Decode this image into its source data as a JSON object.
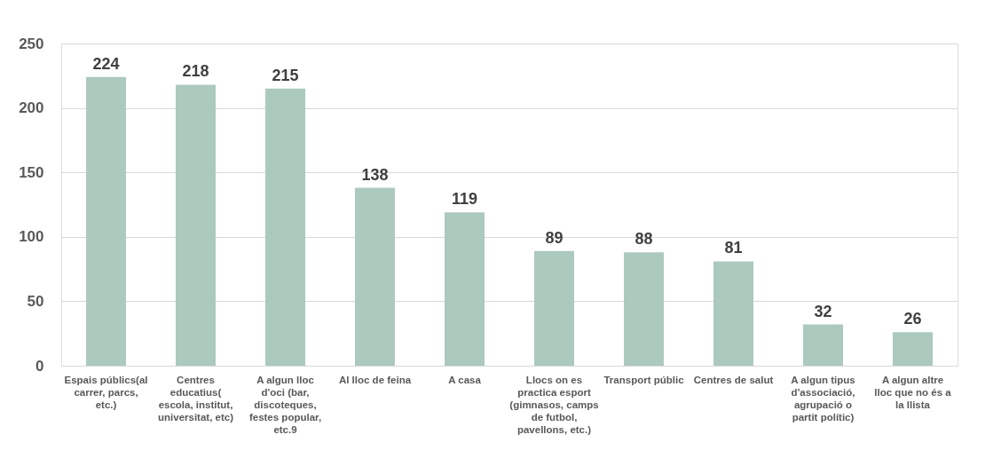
{
  "chart_data": {
    "type": "bar",
    "categories": [
      "Espais públics(al carrer, parcs, etc.)",
      "Centres educatius( escola, institut, universitat, etc)",
      "A algun lloc d'oci (bar, discoteques, festes popular, etc.9",
      "Al lloc de feina",
      "A casa",
      "Llocs on es practica esport (gimnasos, camps de futbol, pavellons, etc.)",
      "Transport públic",
      "Centres de salut",
      "A algun tipus d'associació, agrupació o partit polític)",
      "A algun altre lloc que no és a la llista"
    ],
    "values": [
      224,
      218,
      215,
      138,
      119,
      89,
      88,
      81,
      32,
      26
    ],
    "color": "#acc9be",
    "ylim": [
      0,
      250
    ],
    "yticks": [
      0,
      50,
      100,
      150,
      200,
      250
    ],
    "grid": "y",
    "data_labels": true
  }
}
